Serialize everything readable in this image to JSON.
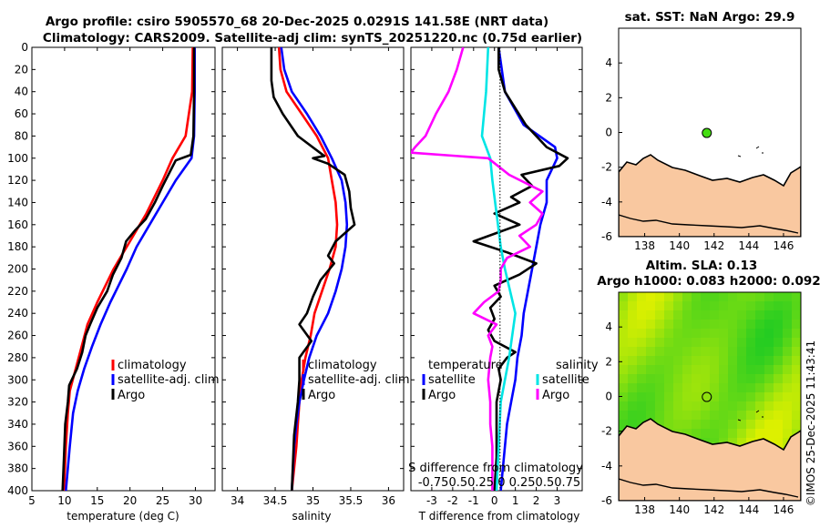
{
  "title": {
    "line1": "Argo profile: csiro 5905570_68 20-Dec-2025 0.0291S 141.58E (NRT data)",
    "line2": "Climatology: CARS2009. Satellite-adj clim: synTS_20251220.nc (0.75d earlier)"
  },
  "colors": {
    "climatology": "#ff0000",
    "satellite": "#0000ff",
    "argo": "#000000",
    "s_satellite": "#00e5e5",
    "s_argo": "#ff00ff",
    "land": "#f9c8a0",
    "argo_marker": "#44dd11",
    "sla_high": "#ddf000",
    "sla_low": "#22cc22"
  },
  "chart_data": [
    {
      "type": "line",
      "name": "temperature-profile",
      "xlabel": "temperature (deg C)",
      "xlim": [
        5,
        33
      ],
      "ylim": [
        400,
        0
      ],
      "xticks": [
        "5",
        "10",
        "15",
        "20",
        "25",
        "30"
      ],
      "yticks": [
        "0",
        "20",
        "40",
        "60",
        "80",
        "100",
        "120",
        "140",
        "160",
        "180",
        "200",
        "220",
        "240",
        "260",
        "280",
        "300",
        "320",
        "340",
        "360",
        "380",
        "400"
      ],
      "legend": [
        "climatology",
        "satellite-adj. clim",
        "Argo"
      ],
      "series": [
        {
          "name": "climatology",
          "depth": [
            0,
            40,
            80,
            100,
            120,
            150,
            180,
            200,
            230,
            250,
            270,
            290,
            310,
            330,
            360,
            400
          ],
          "values": [
            29.6,
            29.5,
            28.5,
            26.5,
            25.0,
            22.5,
            19.5,
            17.5,
            15.0,
            13.5,
            12.6,
            11.7,
            10.8,
            10.5,
            10.2,
            9.9
          ]
        },
        {
          "name": "satellite-adj. clim",
          "depth": [
            0,
            40,
            80,
            100,
            120,
            140,
            160,
            180,
            200,
            230,
            250,
            270,
            290,
            310,
            330,
            360,
            400
          ],
          "values": [
            29.9,
            29.9,
            29.8,
            29.4,
            27.0,
            25.0,
            23.0,
            21.0,
            19.5,
            17.0,
            15.5,
            14.2,
            13.0,
            12.0,
            11.3,
            10.8,
            10.2
          ]
        },
        {
          "name": "Argo",
          "depth": [
            0,
            40,
            80,
            97,
            102,
            110,
            125,
            140,
            155,
            165,
            175,
            190,
            205,
            220,
            235,
            250,
            260,
            275,
            290,
            305,
            320,
            340,
            370,
            400
          ],
          "values": [
            29.8,
            29.8,
            29.7,
            29.3,
            27.0,
            26.3,
            25.0,
            23.8,
            22.4,
            20.8,
            19.4,
            18.7,
            17.4,
            16.5,
            15.0,
            13.9,
            13.2,
            12.7,
            11.9,
            10.7,
            10.5,
            10.1,
            9.9,
            9.7
          ]
        }
      ]
    },
    {
      "type": "line",
      "name": "salinity-profile",
      "xlabel": "salinity",
      "xlim": [
        33.8,
        36.2
      ],
      "ylim": [
        400,
        0
      ],
      "xticks": [
        "34",
        "34.5",
        "35",
        "35.5",
        "36"
      ],
      "legend": [
        "climatology",
        "satellite-adj. clim",
        "Argo"
      ],
      "series": [
        {
          "name": "climatology",
          "depth": [
            0,
            20,
            40,
            60,
            80,
            100,
            120,
            140,
            160,
            180,
            200,
            220,
            240,
            260,
            280,
            300,
            320,
            340,
            360,
            400
          ],
          "values": [
            34.55,
            34.57,
            34.65,
            34.85,
            35.05,
            35.2,
            35.25,
            35.3,
            35.32,
            35.3,
            35.22,
            35.12,
            35.02,
            34.97,
            34.9,
            34.85,
            34.82,
            34.8,
            34.78,
            34.72
          ]
        },
        {
          "name": "satellite-adj. clim",
          "depth": [
            0,
            20,
            40,
            60,
            80,
            100,
            120,
            140,
            160,
            180,
            200,
            220,
            240,
            260,
            280,
            300,
            320,
            340,
            360,
            400
          ],
          "values": [
            34.58,
            34.62,
            34.72,
            34.92,
            35.1,
            35.25,
            35.38,
            35.43,
            35.45,
            35.43,
            35.38,
            35.3,
            35.2,
            35.05,
            34.95,
            34.88,
            34.82,
            34.78,
            34.75,
            34.72
          ]
        },
        {
          "name": "Argo",
          "depth": [
            0,
            30,
            45,
            60,
            80,
            98,
            100,
            105,
            115,
            130,
            145,
            160,
            175,
            188,
            195,
            210,
            225,
            240,
            250,
            265,
            280,
            300,
            320,
            350,
            400
          ],
          "values": [
            34.45,
            34.45,
            34.48,
            34.6,
            34.8,
            35.15,
            35.0,
            35.2,
            35.42,
            35.48,
            35.5,
            35.55,
            35.3,
            35.2,
            35.28,
            35.1,
            35.0,
            34.92,
            34.82,
            34.98,
            34.82,
            34.82,
            34.8,
            34.75,
            34.72
          ]
        }
      ]
    },
    {
      "type": "line",
      "name": "difference-profile",
      "xlabel": "T difference from climatology",
      "xlim": [
        -4,
        4.2
      ],
      "ylim": [
        400,
        0
      ],
      "xticks": [
        "-3",
        "-2",
        "-1",
        "0",
        "1",
        "2",
        "3"
      ],
      "secondary_xlabel": "S difference from climatology",
      "secondary_xticks": [
        "-0.75",
        "0.5",
        "0.25",
        "0",
        "0.25",
        "0.5",
        "0.75"
      ],
      "legend_titles": [
        "temperature",
        "salinity"
      ],
      "legend": [
        "satellite",
        "Argo",
        "satellite",
        "Argo"
      ],
      "series": [
        {
          "name": "temperature satellite",
          "depth": [
            0,
            40,
            70,
            90,
            100,
            120,
            140,
            160,
            180,
            200,
            220,
            240,
            260,
            280,
            300,
            320,
            340,
            400
          ],
          "values": [
            0.2,
            0.5,
            1.4,
            2.9,
            3.0,
            2.5,
            2.5,
            2.2,
            2.0,
            1.8,
            1.6,
            1.4,
            1.3,
            1.1,
            1.0,
            0.8,
            0.6,
            0.3
          ]
        },
        {
          "name": "temperature Argo",
          "depth": [
            0,
            20,
            40,
            70,
            90,
            100,
            107,
            115,
            125,
            135,
            140,
            150,
            160,
            175,
            185,
            195,
            205,
            215,
            225,
            235,
            245,
            255,
            265,
            275,
            280,
            290,
            300,
            320,
            340,
            370,
            400
          ],
          "values": [
            0.2,
            0.2,
            0.5,
            1.5,
            2.5,
            3.5,
            3.1,
            1.3,
            1.8,
            0.8,
            1.2,
            0.0,
            1.2,
            -1.0,
            0.6,
            2.0,
            1.2,
            0.0,
            0.3,
            -0.2,
            0.0,
            -0.3,
            0.0,
            1.0,
            0.6,
            0.2,
            0.3,
            0.1,
            0.1,
            0.1,
            0.0
          ]
        },
        {
          "name": "salinity satellite",
          "depth": [
            0,
            40,
            80,
            100,
            120,
            150,
            180,
            200,
            240,
            280,
            320,
            360,
            400
          ],
          "values": [
            -0.3,
            -0.4,
            -0.6,
            -0.2,
            -0.1,
            0.1,
            0.3,
            0.5,
            1.0,
            0.7,
            0.3,
            0.2,
            0.1
          ]
        },
        {
          "name": "salinity Argo",
          "depth": [
            0,
            20,
            40,
            60,
            80,
            90,
            95,
            100,
            115,
            130,
            140,
            150,
            160,
            170,
            180,
            190,
            200,
            210,
            220,
            230,
            240,
            250,
            260,
            270,
            280,
            300,
            320,
            340,
            360,
            400
          ],
          "values": [
            -1.5,
            -1.8,
            -2.2,
            -2.8,
            -3.3,
            -3.8,
            -4.0,
            -0.3,
            0.7,
            2.3,
            1.7,
            2.3,
            2.0,
            1.2,
            1.7,
            0.6,
            0.3,
            0.3,
            0.2,
            -0.5,
            -1.0,
            0.1,
            -0.3,
            -0.1,
            -0.2,
            -0.3,
            -0.2,
            -0.2,
            -0.1,
            -0.1
          ]
        }
      ]
    },
    {
      "type": "map",
      "name": "sst-map",
      "title": "sat. SST: NaN Argo: 29.9",
      "xlim": [
        136.5,
        147
      ],
      "ylim": [
        -6,
        6
      ],
      "xticks": [
        "138",
        "140",
        "142",
        "144",
        "146"
      ],
      "yticks": [
        "4",
        "2",
        "0",
        "-2",
        "-4",
        "-6"
      ],
      "argo_position": {
        "lon": 141.58,
        "lat": -0.0291
      }
    },
    {
      "type": "heatmap",
      "name": "sla-map",
      "title_line1": "Altim. SLA: 0.13",
      "title_line2": "Argo h1000: 0.083 h2000: 0.092",
      "xlim": [
        136.5,
        147
      ],
      "ylim": [
        -6,
        6
      ],
      "xticks": [
        "138",
        "140",
        "142",
        "144",
        "146"
      ],
      "yticks": [
        "4",
        "2",
        "0",
        "-2",
        "-4",
        "-6"
      ],
      "argo_position": {
        "lon": 141.58,
        "lat": -0.0291
      }
    }
  ],
  "stamp": "©IMOS 25-Dec-2025 11:43:41"
}
